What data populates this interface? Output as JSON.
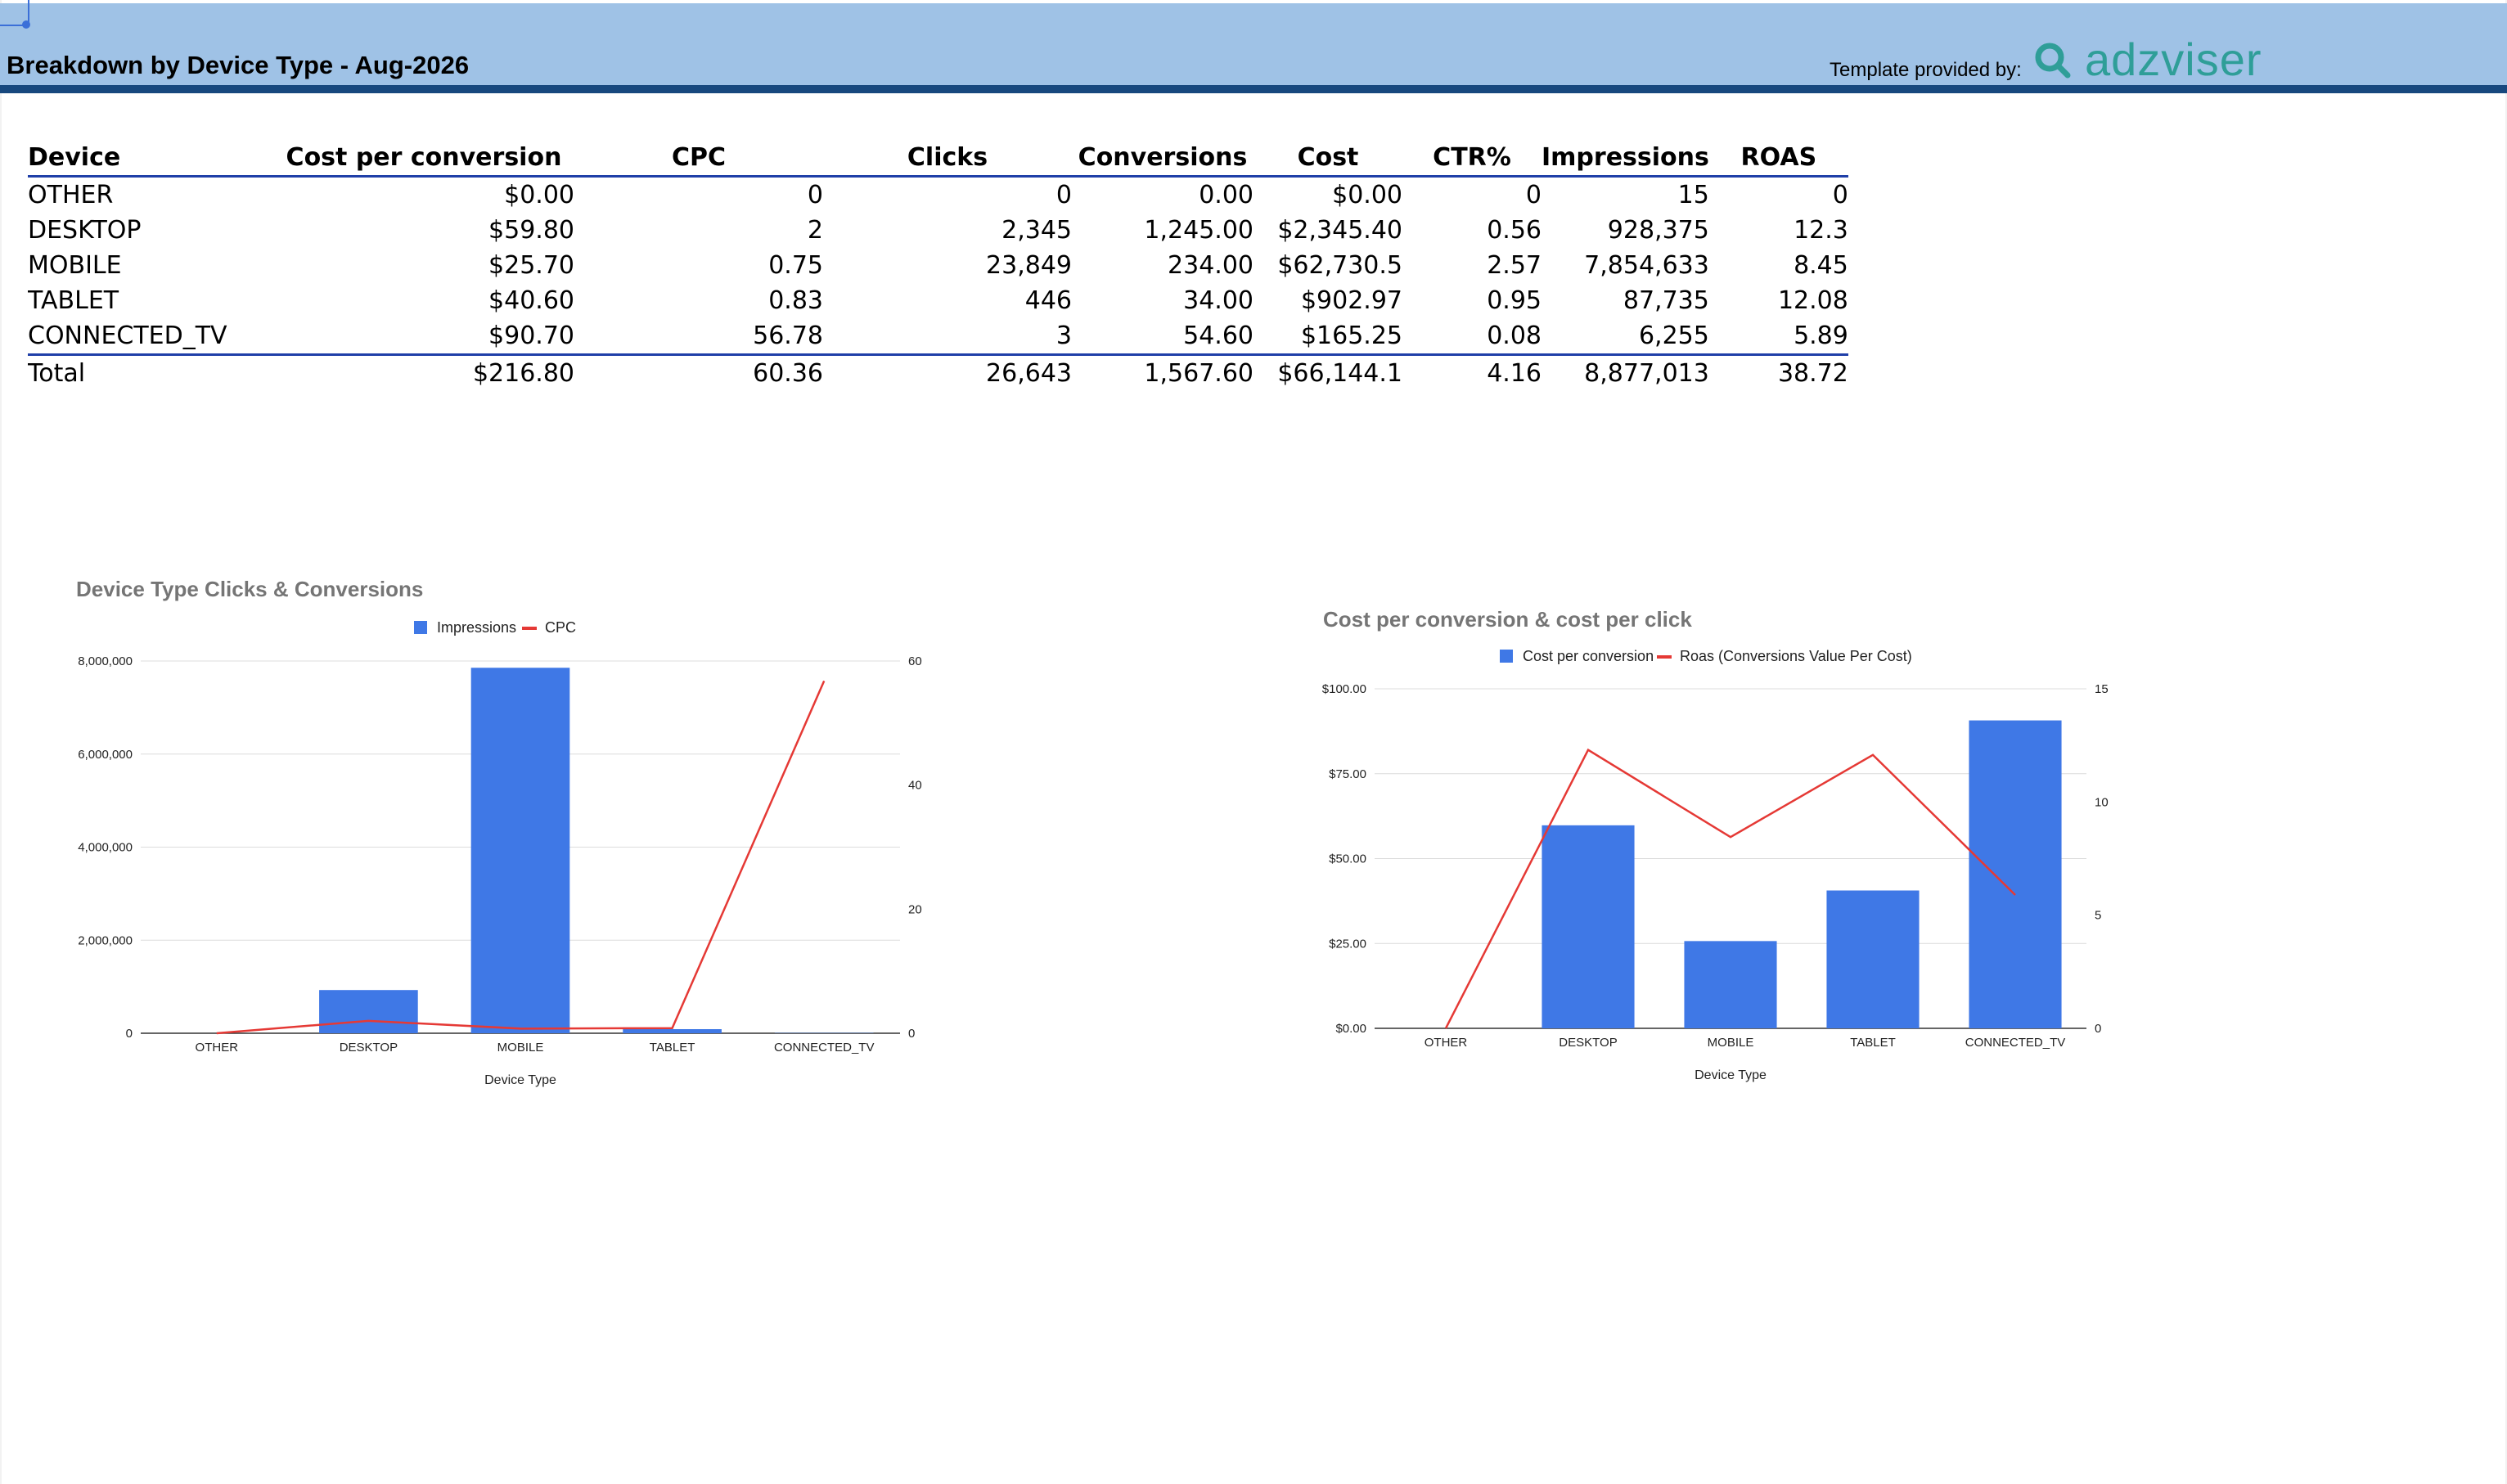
{
  "header": {
    "title": "Breakdown by Device Type - Aug-2026",
    "template_text": "Template provided by:",
    "brand": "adzviser",
    "brand_color": "#2f9e98",
    "band_color": "#9fc2e6",
    "rule_color": "#17487e"
  },
  "table": {
    "columns": [
      "Device",
      "Cost per conversion",
      "CPC",
      "Clicks",
      "Conversions",
      "Cost",
      "CTR%",
      "Impressions",
      "ROAS"
    ],
    "rows": [
      [
        "OTHER",
        "$0.00",
        "0",
        "0",
        "0.00",
        "$0.00",
        "0",
        "15",
        "0"
      ],
      [
        "DESKTOP",
        "$59.80",
        "2",
        "2,345",
        "1,245.00",
        "$2,345.40",
        "0.56",
        "928,375",
        "12.3"
      ],
      [
        "MOBILE",
        "$25.70",
        "0.75",
        "23,849",
        "234.00",
        "$62,730.5",
        "2.57",
        "7,854,633",
        "8.45"
      ],
      [
        "TABLET",
        "$40.60",
        "0.83",
        "446",
        "34.00",
        "$902.97",
        "0.95",
        "87,735",
        "12.08"
      ],
      [
        "CONNECTED_TV",
        "$90.70",
        "56.78",
        "3",
        "54.60",
        "$165.25",
        "0.08",
        "6,255",
        "5.89"
      ]
    ],
    "total": [
      "Total",
      "$216.80",
      "60.36",
      "26,643",
      "1,567.60",
      "$66,144.1",
      "4.16",
      "8,877,013",
      "38.72"
    ]
  },
  "chart_data": [
    {
      "type": "bar",
      "title": "Device Type Clicks & Conversions",
      "xlabel": "Device Type",
      "categories": [
        "OTHER",
        "DESKTOP",
        "MOBILE",
        "TABLET",
        "CONNECTED_TV"
      ],
      "series": [
        {
          "name": "Impressions",
          "type": "bar",
          "axis": "left",
          "color": "#3f78e6",
          "values": [
            15,
            928375,
            7854633,
            87735,
            6255
          ]
        },
        {
          "name": "CPC",
          "type": "line",
          "axis": "right",
          "color": "#e53935",
          "values": [
            0,
            2,
            0.75,
            0.83,
            56.78
          ]
        }
      ],
      "y_left": {
        "ticks": [
          "0",
          "2,000,000",
          "4,000,000",
          "6,000,000",
          "8,000,000"
        ],
        "range": [
          0,
          8000000
        ]
      },
      "y_right": {
        "ticks": [
          "0",
          "20",
          "40",
          "60"
        ],
        "range": [
          0,
          60
        ]
      },
      "grid": true,
      "legend": "top"
    },
    {
      "type": "bar",
      "title": "Cost per conversion & cost per click",
      "xlabel": "Device Type",
      "categories": [
        "OTHER",
        "DESKTOP",
        "MOBILE",
        "TABLET",
        "CONNECTED_TV"
      ],
      "series": [
        {
          "name": "Cost per conversion",
          "type": "bar",
          "axis": "left",
          "color": "#3f78e6",
          "values": [
            0,
            59.8,
            25.7,
            40.6,
            90.7
          ]
        },
        {
          "name": "Roas (Conversions Value Per Cost)",
          "type": "line",
          "axis": "right",
          "color": "#e53935",
          "values": [
            0,
            12.3,
            8.45,
            12.08,
            5.89
          ]
        }
      ],
      "y_left": {
        "ticks": [
          "$0.00",
          "$25.00",
          "$50.00",
          "$75.00",
          "$100.00"
        ],
        "range": [
          0,
          100
        ]
      },
      "y_right": {
        "ticks": [
          "0",
          "5",
          "10",
          "15"
        ],
        "range": [
          0,
          15
        ]
      },
      "grid": true,
      "legend": "top"
    }
  ]
}
